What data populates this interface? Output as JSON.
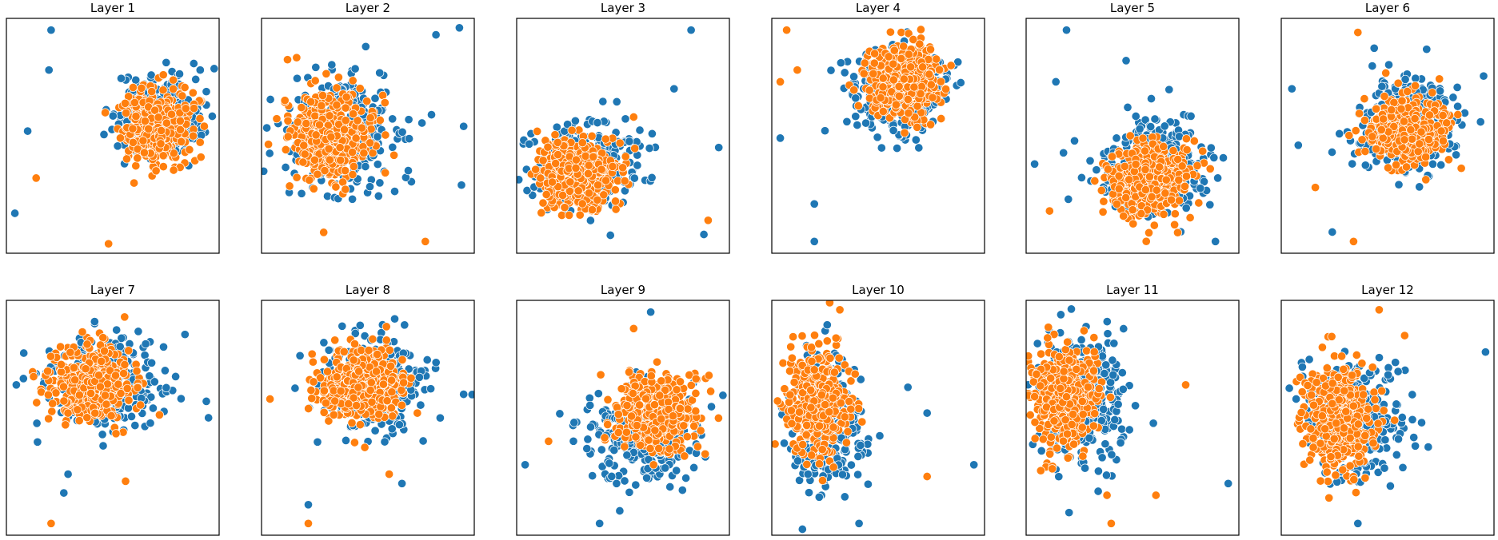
{
  "chart_data": {
    "type": "scatter",
    "layout": "2 rows x 6 columns",
    "axes": "hidden (no ticks or labels)",
    "colors": {
      "class_a": "#1f77b4",
      "class_b": "#ff7f0e"
    },
    "panels": [
      {
        "title": "Layer 1",
        "xlim": [
          0,
          100
        ],
        "ylim": [
          0,
          100
        ],
        "clusters": [
          {
            "color": "class_a",
            "center": [
              72,
              58
            ],
            "spread": [
              19,
              17
            ],
            "n": 360
          },
          {
            "color": "class_b",
            "center": [
              70,
              54
            ],
            "spread": [
              17,
              16
            ],
            "n": 380
          }
        ],
        "outliers": [
          {
            "x": 21,
            "y": 95,
            "color": "class_a"
          },
          {
            "x": 4,
            "y": 17,
            "color": "class_a"
          },
          {
            "x": 48,
            "y": 4,
            "color": "class_b"
          },
          {
            "x": 20,
            "y": 78,
            "color": "class_a"
          },
          {
            "x": 10,
            "y": 52,
            "color": "class_a"
          },
          {
            "x": 14,
            "y": 32,
            "color": "class_b"
          }
        ]
      },
      {
        "title": "Layer 2",
        "xlim": [
          0,
          100
        ],
        "ylim": [
          0,
          100
        ],
        "clusters": [
          {
            "color": "class_a",
            "center": [
              38,
              52
            ],
            "spread": [
              26,
              24
            ],
            "n": 330
          },
          {
            "color": "class_b",
            "center": [
              32,
              50
            ],
            "spread": [
              19,
              20
            ],
            "n": 420
          }
        ],
        "outliers": [
          {
            "x": 93,
            "y": 96,
            "color": "class_a"
          },
          {
            "x": 82,
            "y": 93,
            "color": "class_a"
          },
          {
            "x": 95,
            "y": 54,
            "color": "class_a"
          },
          {
            "x": 94,
            "y": 29,
            "color": "class_a"
          },
          {
            "x": 77,
            "y": 5,
            "color": "class_b"
          },
          {
            "x": 49,
            "y": 88,
            "color": "class_a"
          }
        ]
      },
      {
        "title": "Layer 3",
        "xlim": [
          0,
          100
        ],
        "ylim": [
          0,
          100
        ],
        "clusters": [
          {
            "color": "class_a",
            "center": [
              33,
              38
            ],
            "spread": [
              24,
              18
            ],
            "n": 330
          },
          {
            "color": "class_b",
            "center": [
              29,
              34
            ],
            "spread": [
              18,
              15
            ],
            "n": 420
          }
        ],
        "outliers": [
          {
            "x": 82,
            "y": 95,
            "color": "class_a"
          },
          {
            "x": 95,
            "y": 45,
            "color": "class_a"
          },
          {
            "x": 74,
            "y": 70,
            "color": "class_a"
          },
          {
            "x": 88,
            "y": 8,
            "color": "class_a"
          },
          {
            "x": 90,
            "y": 14,
            "color": "class_b"
          },
          {
            "x": 55,
            "y": 58,
            "color": "class_b"
          }
        ]
      },
      {
        "title": "Layer 4",
        "xlim": [
          0,
          100
        ],
        "ylim": [
          0,
          100
        ],
        "clusters": [
          {
            "color": "class_a",
            "center": [
              60,
              70
            ],
            "spread": [
              22,
              19
            ],
            "n": 330
          },
          {
            "color": "class_b",
            "center": [
              63,
              73
            ],
            "spread": [
              18,
              16
            ],
            "n": 430
          }
        ],
        "outliers": [
          {
            "x": 7,
            "y": 95,
            "color": "class_b"
          },
          {
            "x": 4,
            "y": 73,
            "color": "class_b"
          },
          {
            "x": 4,
            "y": 49,
            "color": "class_a"
          },
          {
            "x": 20,
            "y": 21,
            "color": "class_a"
          },
          {
            "x": 20,
            "y": 5,
            "color": "class_a"
          },
          {
            "x": 12,
            "y": 78,
            "color": "class_b"
          }
        ]
      },
      {
        "title": "Layer 5",
        "xlim": [
          0,
          100
        ],
        "ylim": [
          0,
          100
        ],
        "clusters": [
          {
            "color": "class_a",
            "center": [
              60,
              37
            ],
            "spread": [
              25,
              20
            ],
            "n": 330
          },
          {
            "color": "class_b",
            "center": [
              58,
              31
            ],
            "spread": [
              19,
              15
            ],
            "n": 420
          }
        ],
        "outliers": [
          {
            "x": 19,
            "y": 95,
            "color": "class_a"
          },
          {
            "x": 4,
            "y": 38,
            "color": "class_a"
          },
          {
            "x": 14,
            "y": 73,
            "color": "class_a"
          },
          {
            "x": 89,
            "y": 5,
            "color": "class_a"
          },
          {
            "x": 47,
            "y": 82,
            "color": "class_a"
          },
          {
            "x": 11,
            "y": 18,
            "color": "class_b"
          }
        ]
      },
      {
        "title": "Layer 6",
        "xlim": [
          0,
          100
        ],
        "ylim": [
          0,
          100
        ],
        "clusters": [
          {
            "color": "class_a",
            "center": [
              61,
              55
            ],
            "spread": [
              23,
              19
            ],
            "n": 340
          },
          {
            "color": "class_b",
            "center": [
              59,
              52
            ],
            "spread": [
              19,
              14
            ],
            "n": 420
          }
        ],
        "outliers": [
          {
            "x": 36,
            "y": 94,
            "color": "class_b"
          },
          {
            "x": 5,
            "y": 70,
            "color": "class_a"
          },
          {
            "x": 8,
            "y": 46,
            "color": "class_a"
          },
          {
            "x": 34,
            "y": 5,
            "color": "class_b"
          },
          {
            "x": 24,
            "y": 9,
            "color": "class_a"
          },
          {
            "x": 16,
            "y": 28,
            "color": "class_b"
          }
        ]
      },
      {
        "title": "Layer 7",
        "xlim": [
          0,
          100
        ],
        "ylim": [
          0,
          100
        ],
        "clusters": [
          {
            "color": "class_a",
            "center": [
              47,
              65
            ],
            "spread": [
              27,
              19
            ],
            "n": 320
          },
          {
            "color": "class_b",
            "center": [
              41,
              65
            ],
            "spread": [
              19,
              16
            ],
            "n": 430
          }
        ],
        "outliers": [
          {
            "x": 21,
            "y": 5,
            "color": "class_b"
          },
          {
            "x": 27,
            "y": 18,
            "color": "class_a"
          },
          {
            "x": 29,
            "y": 26,
            "color": "class_a"
          },
          {
            "x": 56,
            "y": 23,
            "color": "class_b"
          },
          {
            "x": 95,
            "y": 50,
            "color": "class_a"
          },
          {
            "x": 94,
            "y": 57,
            "color": "class_a"
          }
        ]
      },
      {
        "title": "Layer 8",
        "xlim": [
          0,
          100
        ],
        "ylim": [
          0,
          100
        ],
        "clusters": [
          {
            "color": "class_a",
            "center": [
              52,
              64
            ],
            "spread": [
              24,
              19
            ],
            "n": 330
          },
          {
            "color": "class_b",
            "center": [
              47,
              64
            ],
            "spread": [
              19,
              14
            ],
            "n": 430
          }
        ],
        "outliers": [
          {
            "x": 22,
            "y": 5,
            "color": "class_b"
          },
          {
            "x": 22,
            "y": 13,
            "color": "class_a"
          },
          {
            "x": 95,
            "y": 60,
            "color": "class_a"
          },
          {
            "x": 66,
            "y": 22,
            "color": "class_a"
          },
          {
            "x": 60,
            "y": 26,
            "color": "class_b"
          },
          {
            "x": 4,
            "y": 58,
            "color": "class_b"
          }
        ]
      },
      {
        "title": "Layer 9",
        "xlim": [
          0,
          100
        ],
        "ylim": [
          0,
          100
        ],
        "clusters": [
          {
            "color": "class_a",
            "center": [
              60,
              43
            ],
            "spread": [
              23,
              22
            ],
            "n": 320
          },
          {
            "color": "class_b",
            "center": [
              66,
              52
            ],
            "spread": [
              18,
              16
            ],
            "n": 430
          }
        ],
        "outliers": [
          {
            "x": 63,
            "y": 95,
            "color": "class_a"
          },
          {
            "x": 4,
            "y": 30,
            "color": "class_a"
          },
          {
            "x": 39,
            "y": 5,
            "color": "class_a"
          },
          {
            "x": 27,
            "y": 48,
            "color": "class_a"
          },
          {
            "x": 55,
            "y": 88,
            "color": "class_b"
          },
          {
            "x": 15,
            "y": 40,
            "color": "class_b"
          }
        ]
      },
      {
        "title": "Layer 10",
        "xlim": [
          0,
          100
        ],
        "ylim": [
          0,
          100
        ],
        "clusters": [
          {
            "color": "class_a",
            "center": [
              26,
              48
            ],
            "spread": [
              17,
              27
            ],
            "n": 330
          },
          {
            "color": "class_b",
            "center": [
              21,
              57
            ],
            "spread": [
              14,
              22
            ],
            "n": 400
          }
        ],
        "outliers": [
          {
            "x": 95,
            "y": 30,
            "color": "class_a"
          },
          {
            "x": 73,
            "y": 52,
            "color": "class_a"
          },
          {
            "x": 64,
            "y": 63,
            "color": "class_a"
          },
          {
            "x": 41,
            "y": 5,
            "color": "class_a"
          },
          {
            "x": 73,
            "y": 25,
            "color": "class_b"
          },
          {
            "x": 32,
            "y": 96,
            "color": "class_b"
          }
        ]
      },
      {
        "title": "Layer 11",
        "xlim": [
          0,
          100
        ],
        "ylim": [
          0,
          100
        ],
        "clusters": [
          {
            "color": "class_a",
            "center": [
              26,
              58
            ],
            "spread": [
              20,
              26
            ],
            "n": 330
          },
          {
            "color": "class_b",
            "center": [
              18,
              59
            ],
            "spread": [
              15,
              22
            ],
            "n": 410
          }
        ],
        "outliers": [
          {
            "x": 95,
            "y": 22,
            "color": "class_a"
          },
          {
            "x": 40,
            "y": 5,
            "color": "class_b"
          },
          {
            "x": 38,
            "y": 17,
            "color": "class_b"
          },
          {
            "x": 61,
            "y": 17,
            "color": "class_b"
          },
          {
            "x": 75,
            "y": 64,
            "color": "class_b"
          },
          {
            "x": 4,
            "y": 59,
            "color": "class_b"
          }
        ]
      },
      {
        "title": "Layer 12",
        "xlim": [
          0,
          100
        ],
        "ylim": [
          0,
          100
        ],
        "clusters": [
          {
            "color": "class_a",
            "center": [
              34,
              49
            ],
            "spread": [
              22,
              26
            ],
            "n": 320
          },
          {
            "color": "class_b",
            "center": [
              27,
              50
            ],
            "spread": [
              16,
              24
            ],
            "n": 400
          }
        ],
        "outliers": [
          {
            "x": 46,
            "y": 96,
            "color": "class_b"
          },
          {
            "x": 58,
            "y": 85,
            "color": "class_b"
          },
          {
            "x": 96,
            "y": 78,
            "color": "class_a"
          },
          {
            "x": 63,
            "y": 38,
            "color": "class_a"
          },
          {
            "x": 7,
            "y": 58,
            "color": "class_a"
          },
          {
            "x": 36,
            "y": 5,
            "color": "class_a"
          }
        ]
      }
    ]
  }
}
